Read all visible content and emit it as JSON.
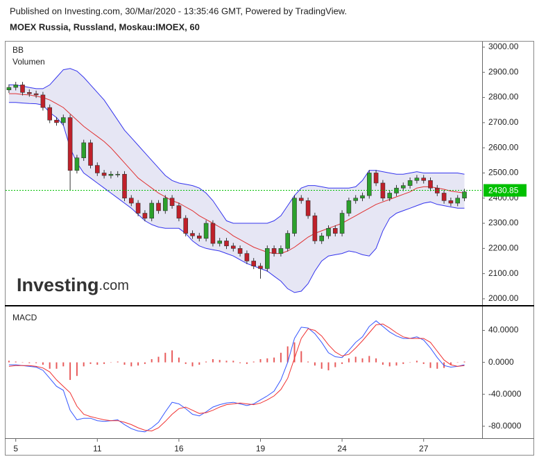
{
  "chart_data": [
    {
      "type": "candlestick",
      "subtitle": "Published on Investing.com, 30/Mar/2020 - 13:35:46 GMT, Powered by TradingView.",
      "title": "MOEX Russia, Russland, Moskau:IMOEX, 60",
      "legend": [
        "BB",
        "Volumen"
      ],
      "watermark": "Investing",
      "watermark_suffix": ".com",
      "categories": [
        null,
        "5",
        null,
        null,
        null,
        null,
        null,
        null,
        null,
        null,
        null,
        null,
        null,
        "11",
        null,
        null,
        null,
        null,
        null,
        null,
        null,
        null,
        null,
        null,
        null,
        "16",
        null,
        null,
        null,
        null,
        null,
        null,
        null,
        null,
        null,
        null,
        null,
        "19",
        null,
        null,
        null,
        null,
        null,
        null,
        null,
        null,
        null,
        null,
        null,
        "24",
        null,
        null,
        null,
        null,
        null,
        null,
        null,
        null,
        null,
        null,
        null,
        "27",
        null,
        null,
        null,
        null,
        null,
        null
      ],
      "open": [
        2830,
        2840,
        2850,
        2820,
        2815,
        2810,
        2760,
        2710,
        2700,
        2720,
        2510,
        2560,
        2620,
        2530,
        2500,
        2490,
        2495,
        2495,
        2400,
        2380,
        2340,
        2320,
        2380,
        2350,
        2400,
        2370,
        2320,
        2260,
        2250,
        2240,
        2300,
        2220,
        2230,
        2210,
        2200,
        2180,
        2150,
        2130,
        2120,
        2200,
        2180,
        2200,
        2260,
        2400,
        2390,
        2330,
        2230,
        2250,
        2280,
        2260,
        2340,
        2390,
        2400,
        2410,
        2500,
        2460,
        2400,
        2420,
        2440,
        2450,
        2470,
        2480,
        2470,
        2440,
        2420,
        2390,
        2380,
        2400
      ],
      "high": [
        2852,
        2862,
        2862,
        2832,
        2827,
        2822,
        2772,
        2722,
        2732,
        2732,
        2572,
        2632,
        2632,
        2542,
        2512,
        2507,
        2507,
        2507,
        2412,
        2392,
        2352,
        2392,
        2392,
        2412,
        2412,
        2382,
        2332,
        2272,
        2262,
        2312,
        2312,
        2242,
        2242,
        2222,
        2212,
        2192,
        2162,
        2142,
        2212,
        2212,
        2212,
        2272,
        2412,
        2412,
        2402,
        2342,
        2262,
        2292,
        2292,
        2352,
        2402,
        2412,
        2422,
        2512,
        2512,
        2472,
        2432,
        2452,
        2462,
        2482,
        2492,
        2492,
        2482,
        2452,
        2432,
        2402,
        2412,
        2437
      ],
      "low": [
        2818,
        2828,
        2808,
        2803,
        2798,
        2748,
        2698,
        2688,
        2688,
        2430,
        2498,
        2548,
        2518,
        2488,
        2478,
        2478,
        2483,
        2388,
        2368,
        2328,
        2308,
        2308,
        2338,
        2338,
        2358,
        2308,
        2248,
        2238,
        2228,
        2228,
        2208,
        2208,
        2198,
        2188,
        2168,
        2138,
        2118,
        2080,
        2108,
        2168,
        2168,
        2188,
        2248,
        2378,
        2318,
        2218,
        2218,
        2238,
        2248,
        2248,
        2328,
        2378,
        2388,
        2398,
        2448,
        2388,
        2388,
        2408,
        2428,
        2438,
        2458,
        2458,
        2428,
        2408,
        2378,
        2368,
        2368,
        2388
      ],
      "close": [
        2840,
        2850,
        2820,
        2815,
        2810,
        2760,
        2710,
        2700,
        2720,
        2510,
        2560,
        2620,
        2530,
        2500,
        2490,
        2495,
        2495,
        2400,
        2380,
        2340,
        2320,
        2380,
        2350,
        2400,
        2370,
        2320,
        2260,
        2250,
        2240,
        2300,
        2220,
        2230,
        2210,
        2200,
        2180,
        2150,
        2130,
        2120,
        2200,
        2180,
        2200,
        2260,
        2400,
        2390,
        2330,
        2230,
        2250,
        2280,
        2260,
        2340,
        2390,
        2400,
        2410,
        2500,
        2460,
        2400,
        2420,
        2440,
        2450,
        2470,
        2480,
        2470,
        2440,
        2420,
        2390,
        2380,
        2400,
        2425
      ],
      "bb": {
        "upper": [
          2850,
          2850,
          2845,
          2840,
          2835,
          2835,
          2850,
          2880,
          2910,
          2915,
          2905,
          2880,
          2850,
          2820,
          2790,
          2750,
          2710,
          2670,
          2640,
          2610,
          2580,
          2550,
          2520,
          2490,
          2470,
          2460,
          2455,
          2450,
          2440,
          2420,
          2390,
          2350,
          2310,
          2300,
          2300,
          2300,
          2300,
          2300,
          2300,
          2310,
          2330,
          2370,
          2410,
          2440,
          2450,
          2450,
          2445,
          2440,
          2440,
          2440,
          2440,
          2445,
          2470,
          2510,
          2510,
          2505,
          2500,
          2495,
          2495,
          2500,
          2505,
          2500,
          2500,
          2500,
          2500,
          2500,
          2500,
          2495
        ],
        "middle": [
          2815,
          2815,
          2812,
          2810,
          2805,
          2800,
          2790,
          2775,
          2760,
          2735,
          2710,
          2685,
          2665,
          2645,
          2625,
          2600,
          2570,
          2540,
          2510,
          2480,
          2460,
          2440,
          2420,
          2405,
          2390,
          2380,
          2365,
          2350,
          2330,
          2315,
          2300,
          2285,
          2270,
          2250,
          2235,
          2220,
          2205,
          2195,
          2185,
          2180,
          2180,
          2190,
          2205,
          2225,
          2245,
          2260,
          2270,
          2280,
          2290,
          2300,
          2315,
          2330,
          2345,
          2360,
          2375,
          2385,
          2395,
          2405,
          2415,
          2425,
          2440,
          2445,
          2445,
          2440,
          2435,
          2428,
          2424,
          2420
        ],
        "lower": [
          2780,
          2780,
          2778,
          2776,
          2775,
          2770,
          2740,
          2720,
          2690,
          2600,
          2540,
          2500,
          2480,
          2460,
          2440,
          2420,
          2400,
          2380,
          2360,
          2335,
          2310,
          2295,
          2285,
          2280,
          2280,
          2280,
          2260,
          2230,
          2210,
          2200,
          2195,
          2190,
          2180,
          2170,
          2155,
          2140,
          2130,
          2120,
          2110,
          2090,
          2070,
          2040,
          2025,
          2030,
          2060,
          2110,
          2150,
          2170,
          2175,
          2180,
          2190,
          2185,
          2175,
          2170,
          2200,
          2270,
          2320,
          2340,
          2350,
          2360,
          2370,
          2380,
          2385,
          2375,
          2370,
          2365,
          2360,
          2360
        ]
      },
      "last_price": 2430.85,
      "ylim": [
        1975,
        3022
      ],
      "yticks": [
        {
          "value": 2000,
          "label": "2000.00"
        },
        {
          "value": 2100,
          "label": "2100.00"
        },
        {
          "value": 2200,
          "label": "2200.00"
        },
        {
          "value": 2300,
          "label": "2300.00"
        },
        {
          "value": 2400,
          "label": "2400.00"
        },
        {
          "value": 2500,
          "label": "2500.00"
        },
        {
          "value": 2600,
          "label": "2600.00"
        },
        {
          "value": 2700,
          "label": "2700.00"
        },
        {
          "value": 2800,
          "label": "2800.00"
        },
        {
          "value": 2900,
          "label": "2900.00"
        },
        {
          "value": 3000,
          "label": "3000.00"
        }
      ],
      "up_color": "#2ca02c",
      "down_color": "#c0202a",
      "band_color": "#3333ee",
      "mid_color": "#e03030",
      "band_fill": "#dcdcef",
      "last_color": "#00c000"
    },
    {
      "type": "macd",
      "title": "MACD",
      "macd": [
        -3,
        -3,
        -4,
        -5,
        -6,
        -10,
        -20,
        -30,
        -35,
        -60,
        -72,
        -70,
        -70,
        -73,
        -74,
        -73,
        -72,
        -78,
        -83,
        -86,
        -87,
        -82,
        -75,
        -62,
        -50,
        -52,
        -58,
        -65,
        -67,
        -62,
        -56,
        -53,
        -51,
        -50,
        -52,
        -54,
        -52,
        -47,
        -42,
        -36,
        -22,
        0,
        30,
        44,
        43,
        36,
        25,
        12,
        7,
        6,
        15,
        25,
        32,
        45,
        52,
        45,
        38,
        33,
        30,
        30,
        32,
        28,
        18,
        6,
        -4,
        -6,
        -5,
        -3
      ],
      "signal": [
        -5,
        -4,
        -4,
        -4,
        -5,
        -7,
        -12,
        -22,
        -30,
        -38,
        -55,
        -65,
        -68,
        -70,
        -72,
        -73,
        -73,
        -75,
        -78,
        -82,
        -85,
        -86,
        -82,
        -74,
        -65,
        -58,
        -56,
        -60,
        -64,
        -63,
        -60,
        -56,
        -53,
        -52,
        -51,
        -52,
        -53,
        -51,
        -47,
        -42,
        -34,
        -20,
        5,
        30,
        42,
        40,
        33,
        22,
        13,
        8,
        10,
        18,
        27,
        37,
        47,
        48,
        43,
        37,
        32,
        30,
        30,
        30,
        25,
        14,
        3,
        -3,
        -5,
        -4
      ],
      "histogram": [
        2,
        1,
        0,
        -1,
        -1,
        -3,
        -8,
        -8,
        -5,
        -22,
        -17,
        -5,
        -2,
        -3,
        -2,
        0,
        1,
        -3,
        -5,
        -4,
        -2,
        4,
        7,
        12,
        15,
        6,
        -2,
        -5,
        -3,
        1,
        4,
        3,
        2,
        2,
        -1,
        -2,
        1,
        4,
        5,
        6,
        12,
        20,
        25,
        14,
        1,
        -4,
        -8,
        -10,
        -6,
        -2,
        5,
        7,
        5,
        8,
        5,
        -3,
        -5,
        -4,
        -2,
        0,
        2,
        -2,
        -7,
        -8,
        -7,
        -3,
        0,
        1
      ],
      "ylim": [
        -95,
        70
      ],
      "yticks": [
        {
          "value": -80,
          "label": "-80.0000"
        },
        {
          "value": -40,
          "label": "-40.0000"
        },
        {
          "value": 0,
          "label": "0.0000"
        },
        {
          "value": 40,
          "label": "40.0000"
        }
      ],
      "macd_color": "#3355ff",
      "signal_color": "#f03030",
      "hist_color": "#e85a5a"
    }
  ]
}
